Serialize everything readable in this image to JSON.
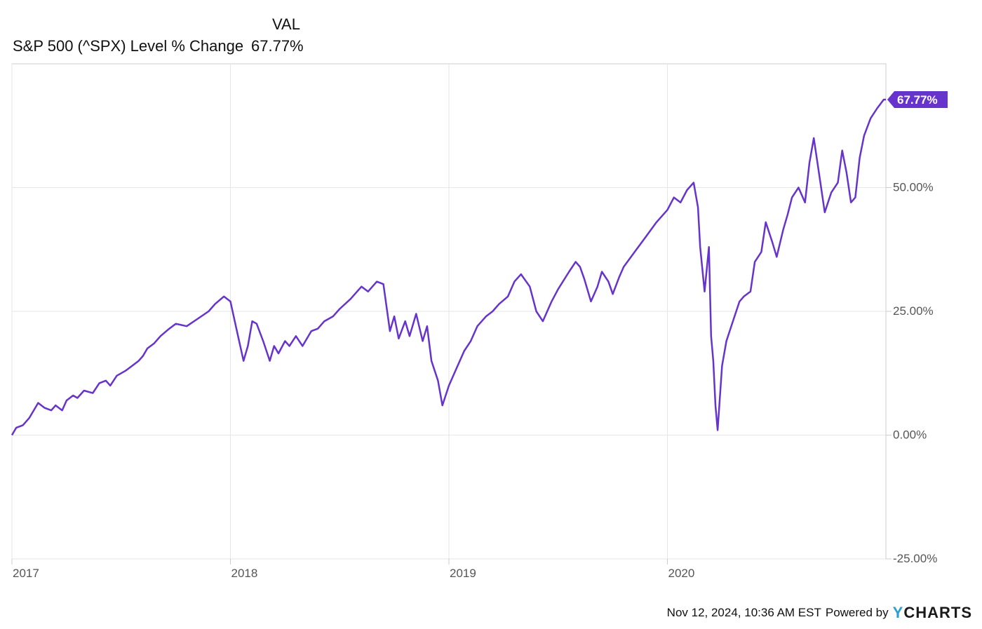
{
  "legend": {
    "column_header": "VAL",
    "series_name": "S&P 500 (^SPX) Level % Change",
    "series_value": "67.77%"
  },
  "footer": {
    "timestamp": "Nov 12, 2024, 10:36 AM EST",
    "powered_by": "Powered by",
    "brand": "CHARTS",
    "brand_initial": "Y"
  },
  "colors": {
    "line": "#6633cc",
    "grid": "#e6e6e6",
    "axis": "#cccccc",
    "text": "#555555"
  },
  "chart_data": {
    "type": "line",
    "title": "",
    "xlabel": "",
    "ylabel": "",
    "xlim": [
      2017.0,
      2021.0
    ],
    "ylim": [
      -25,
      75
    ],
    "x_ticks": [
      {
        "value": 2017,
        "label": "2017"
      },
      {
        "value": 2018,
        "label": "2018"
      },
      {
        "value": 2019,
        "label": "2019"
      },
      {
        "value": 2020,
        "label": "2020"
      }
    ],
    "y_ticks": [
      {
        "value": 50,
        "label": "50.00%"
      },
      {
        "value": 25,
        "label": "25.00%"
      },
      {
        "value": 0,
        "label": "0.00%"
      },
      {
        "value": -25,
        "label": "-25.00%"
      }
    ],
    "end_label": "67.77%",
    "grid": true,
    "series": [
      {
        "name": "S&P 500 (^SPX) Level % Change",
        "x": [
          2017.0,
          2017.02,
          2017.05,
          2017.08,
          2017.12,
          2017.15,
          2017.18,
          2017.2,
          2017.23,
          2017.25,
          2017.28,
          2017.3,
          2017.33,
          2017.37,
          2017.4,
          2017.43,
          2017.45,
          2017.48,
          2017.52,
          2017.55,
          2017.58,
          2017.6,
          2017.62,
          2017.65,
          2017.68,
          2017.72,
          2017.75,
          2017.8,
          2017.85,
          2017.9,
          2017.93,
          2017.97,
          2018.0,
          2018.03,
          2018.06,
          2018.08,
          2018.1,
          2018.12,
          2018.15,
          2018.18,
          2018.2,
          2018.22,
          2018.25,
          2018.27,
          2018.3,
          2018.33,
          2018.37,
          2018.4,
          2018.43,
          2018.47,
          2018.5,
          2018.55,
          2018.6,
          2018.63,
          2018.67,
          2018.7,
          2018.73,
          2018.75,
          2018.77,
          2018.8,
          2018.82,
          2018.85,
          2018.88,
          2018.9,
          2018.92,
          2018.95,
          2018.97,
          2019.0,
          2019.03,
          2019.07,
          2019.1,
          2019.13,
          2019.17,
          2019.2,
          2019.23,
          2019.27,
          2019.3,
          2019.33,
          2019.37,
          2019.4,
          2019.43,
          2019.47,
          2019.5,
          2019.55,
          2019.58,
          2019.6,
          2019.62,
          2019.65,
          2019.68,
          2019.7,
          2019.73,
          2019.75,
          2019.78,
          2019.8,
          2019.85,
          2019.9,
          2019.95,
          2020.0,
          2020.03,
          2020.06,
          2020.09,
          2020.12,
          2020.14,
          2020.15,
          2020.17,
          2020.19,
          2020.2,
          2020.21,
          2020.22,
          2020.23,
          2020.25,
          2020.27,
          2020.3,
          2020.33,
          2020.35,
          2020.38,
          2020.4,
          2020.43,
          2020.45,
          2020.48,
          2020.5,
          2020.53,
          2020.55,
          2020.57,
          2020.6,
          2020.63,
          2020.65,
          2020.67,
          2020.7,
          2020.72,
          2020.75,
          2020.78,
          2020.8,
          2020.82,
          2020.84,
          2020.86,
          2020.88,
          2020.9,
          2020.93,
          2020.96,
          2020.99,
          2021.0
        ],
        "y": [
          0.0,
          1.5,
          2.0,
          3.5,
          6.5,
          5.5,
          5.0,
          6.0,
          5.0,
          7.0,
          8.0,
          7.5,
          9.0,
          8.5,
          10.5,
          11.0,
          10.0,
          12.0,
          13.0,
          14.0,
          15.0,
          16.0,
          17.5,
          18.5,
          20.0,
          21.5,
          22.5,
          22.0,
          23.5,
          25.0,
          26.5,
          28.0,
          27.0,
          21.0,
          15.0,
          18.0,
          23.0,
          22.5,
          19.0,
          15.0,
          18.0,
          16.5,
          19.0,
          18.0,
          20.0,
          18.0,
          21.0,
          21.5,
          23.0,
          24.0,
          25.5,
          27.5,
          30.0,
          29.0,
          31.0,
          30.5,
          21.0,
          24.0,
          19.5,
          23.0,
          20.0,
          24.5,
          19.0,
          22.0,
          15.0,
          11.0,
          6.0,
          10.0,
          13.0,
          17.0,
          19.0,
          22.0,
          24.0,
          25.0,
          26.5,
          28.0,
          31.0,
          32.5,
          30.0,
          25.0,
          23.0,
          27.0,
          29.5,
          33.0,
          35.0,
          34.0,
          31.5,
          27.0,
          30.0,
          33.0,
          31.0,
          28.5,
          32.0,
          34.0,
          37.0,
          40.0,
          43.0,
          45.5,
          48.0,
          47.0,
          49.5,
          51.0,
          46.0,
          38.0,
          29.0,
          38.0,
          20.0,
          15.0,
          6.0,
          1.0,
          14.0,
          19.0,
          23.0,
          27.0,
          28.0,
          29.0,
          35.0,
          37.0,
          43.0,
          39.0,
          36.0,
          41.5,
          44.5,
          48.0,
          50.0,
          47.0,
          55.0,
          60.0,
          51.0,
          45.0,
          49.0,
          51.0,
          57.5,
          53.0,
          47.0,
          48.0,
          56.0,
          60.5,
          64.0,
          66.0,
          67.77,
          67.77
        ]
      }
    ]
  }
}
